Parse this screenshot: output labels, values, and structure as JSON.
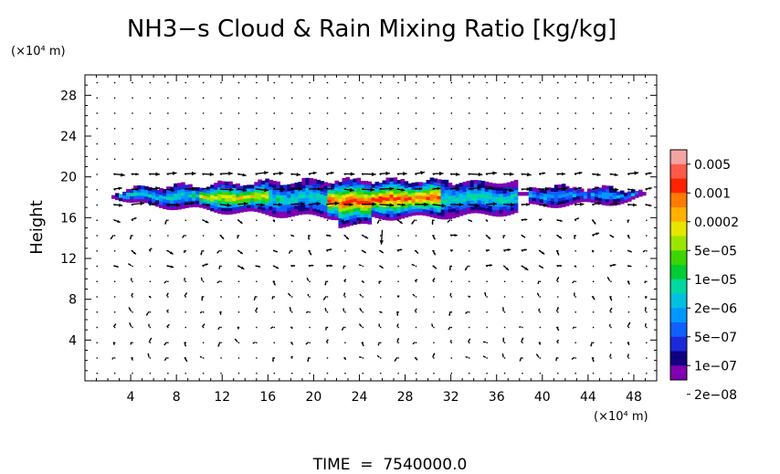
{
  "chart_data": {
    "type": "heatmap",
    "title": "NH3−s Cloud & Rain Mixing Ratio [kg/kg]",
    "ylabel": "Height",
    "x_unit_label": "(×10⁴ m)",
    "y_unit_label": "(×10⁴ m)",
    "xlim": [
      0,
      50
    ],
    "ylim": [
      0,
      30
    ],
    "x_ticks": [
      4,
      8,
      12,
      16,
      20,
      24,
      28,
      32,
      36,
      40,
      44,
      48
    ],
    "y_ticks": [
      4,
      8,
      12,
      16,
      20,
      24,
      28
    ],
    "time_label": "TIME  =  7540000.0",
    "colorbar": {
      "levels_top_to_bottom": [
        "0.005",
        "0.001",
        "0.0002",
        "5e−05",
        "1e−05",
        "2e−06",
        "5e−07",
        "1e−07",
        "2e−08"
      ],
      "colors_top_to_bottom": [
        "#f4a3a3",
        "#ff5a4a",
        "#ff2200",
        "#ff7a00",
        "#ffb000",
        "#e6e600",
        "#9ae600",
        "#3dd400",
        "#00cc33",
        "#00d8a0",
        "#00c0e0",
        "#0098ff",
        "#1060ff",
        "#1a2ad8",
        "#100080",
        "#8000b0"
      ]
    },
    "cloud_layer": {
      "x_range": [
        2,
        49
      ],
      "y_range": [
        15.5,
        19.7
      ],
      "max_value_region": "x 22-30, y 16-18",
      "max_value": "0.001"
    },
    "wind_vectors": "velocity arrows on a regular grid over the whole domain"
  }
}
